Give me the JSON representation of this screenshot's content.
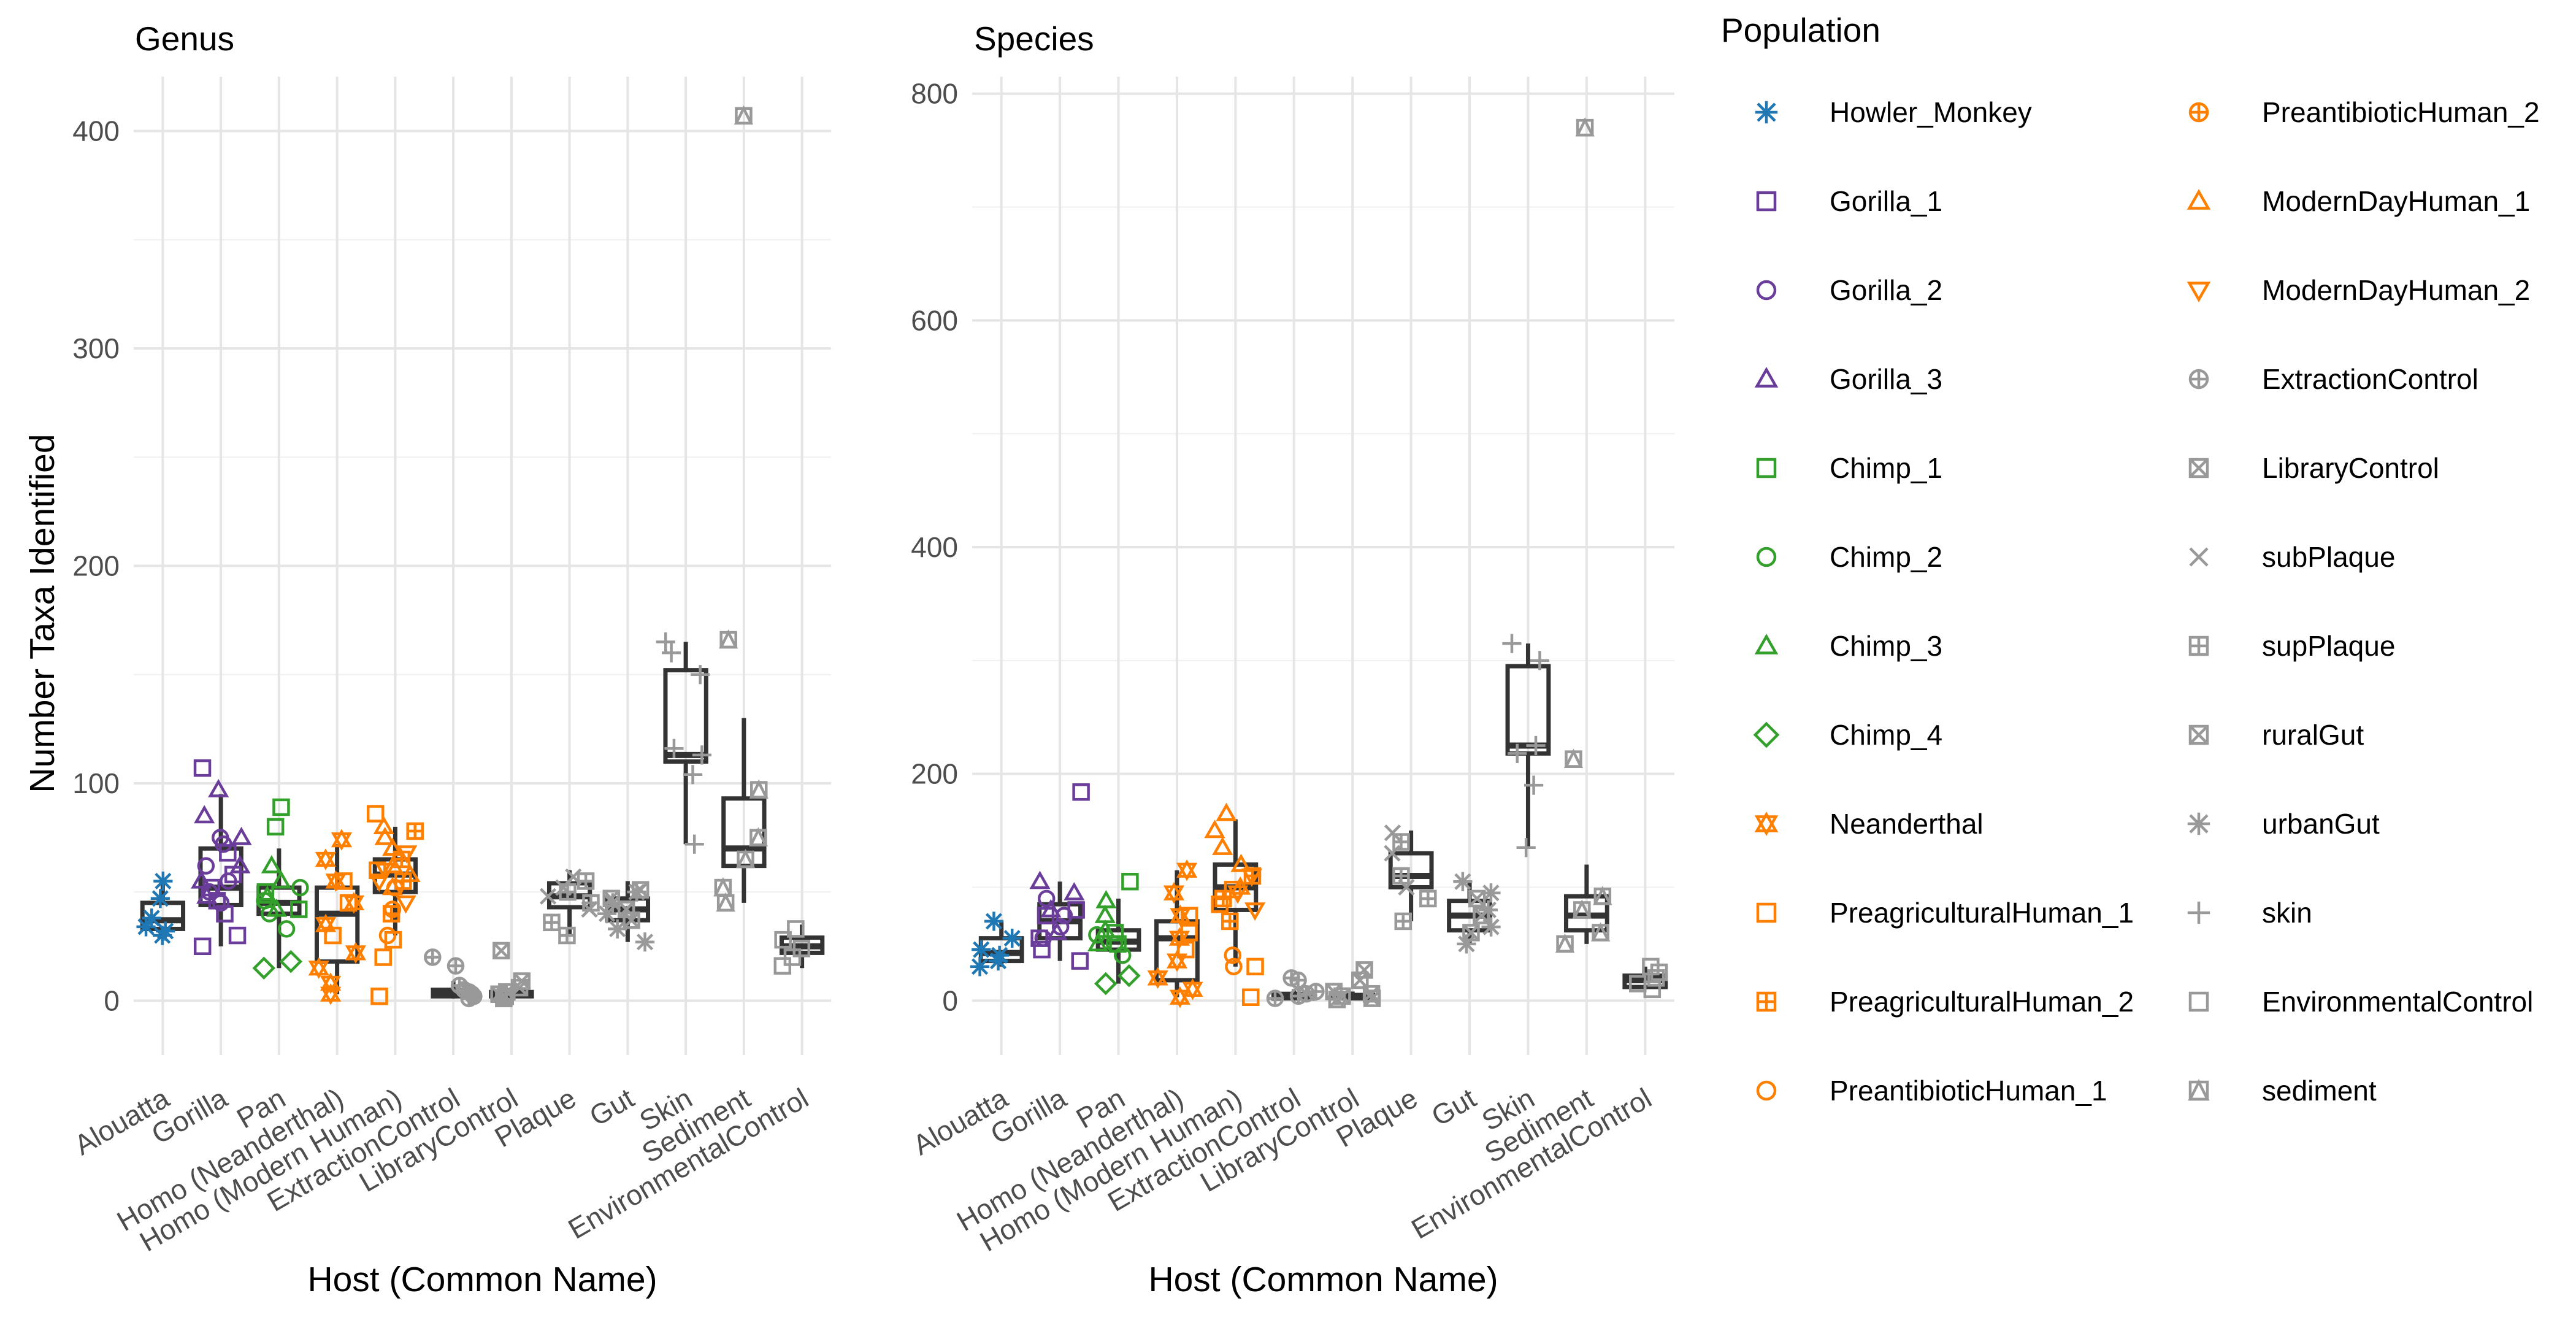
{
  "figure": {
    "y_axis_title": "Number Taxa Identified",
    "legend_title": "Population",
    "legend": [
      {
        "label": "Howler_Monkey",
        "color": "#1f78b4",
        "shape": "asterisk"
      },
      {
        "label": "Gorilla_1",
        "color": "#6a3d9a",
        "shape": "square"
      },
      {
        "label": "Gorilla_2",
        "color": "#6a3d9a",
        "shape": "circle"
      },
      {
        "label": "Gorilla_3",
        "color": "#6a3d9a",
        "shape": "triangle"
      },
      {
        "label": "Chimp_1",
        "color": "#33a02c",
        "shape": "square"
      },
      {
        "label": "Chimp_2",
        "color": "#33a02c",
        "shape": "circle"
      },
      {
        "label": "Chimp_3",
        "color": "#33a02c",
        "shape": "triangle"
      },
      {
        "label": "Chimp_4",
        "color": "#33a02c",
        "shape": "diamond"
      },
      {
        "label": "Neanderthal",
        "color": "#ff7f00",
        "shape": "star-of-david"
      },
      {
        "label": "PreagriculturalHuman_1",
        "color": "#ff7f00",
        "shape": "square"
      },
      {
        "label": "PreagriculturalHuman_2",
        "color": "#ff7f00",
        "shape": "square-plus"
      },
      {
        "label": "PreantibioticHuman_1",
        "color": "#ff7f00",
        "shape": "circle"
      },
      {
        "label": "PreantibioticHuman_2",
        "color": "#ff7f00",
        "shape": "circle-plus"
      },
      {
        "label": "ModernDayHuman_1",
        "color": "#ff7f00",
        "shape": "triangle"
      },
      {
        "label": "ModernDayHuman_2",
        "color": "#ff7f00",
        "shape": "triangle-down"
      },
      {
        "label": "ExtractionControl",
        "color": "#999999",
        "shape": "circle-plus"
      },
      {
        "label": "LibraryControl",
        "color": "#999999",
        "shape": "square-x"
      },
      {
        "label": "subPlaque",
        "color": "#999999",
        "shape": "x"
      },
      {
        "label": "supPlaque",
        "color": "#999999",
        "shape": "square-plus"
      },
      {
        "label": "ruralGut",
        "color": "#999999",
        "shape": "square-x"
      },
      {
        "label": "urbanGut",
        "color": "#999999",
        "shape": "asterisk"
      },
      {
        "label": "skin",
        "color": "#999999",
        "shape": "plus"
      },
      {
        "label": "EnvironmentalControl",
        "color": "#999999",
        "shape": "square"
      },
      {
        "label": "sediment",
        "color": "#999999",
        "shape": "square-triangle"
      }
    ]
  },
  "chart_data": [
    {
      "type": "box",
      "title": "Genus",
      "xlabel": "Host (Common Name)",
      "ylabel": "Number Taxa Identified",
      "ylim": [
        -25,
        425
      ],
      "yticks": [
        0,
        100,
        200,
        300,
        400
      ],
      "grid": true,
      "categories": [
        "Alouatta",
        "Gorilla",
        "Pan",
        "Homo (Neanderthal)",
        "Homo (Modern Human)",
        "ExtractionControl",
        "LibraryControl",
        "Plaque",
        "Gut",
        "Skin",
        "Sediment",
        "EnvironmentalControl"
      ],
      "boxes": [
        {
          "category": "Alouatta",
          "q1": 33,
          "median": 37,
          "q3": 45,
          "lower": 30,
          "upper": 55
        },
        {
          "category": "Gorilla",
          "q1": 44,
          "median": 52,
          "q3": 70,
          "lower": 25,
          "upper": 95
        },
        {
          "category": "Pan",
          "q1": 40,
          "median": 45,
          "q3": 52,
          "lower": 15,
          "upper": 70
        },
        {
          "category": "Homo (Neanderthal)",
          "q1": 18,
          "median": 40,
          "q3": 52,
          "lower": 3,
          "upper": 72
        },
        {
          "category": "Homo (Modern Human)",
          "q1": 50,
          "median": 58,
          "q3": 65,
          "lower": 30,
          "upper": 80
        },
        {
          "category": "ExtractionControl",
          "q1": 2,
          "median": 3,
          "q3": 5,
          "lower": 1,
          "upper": 9
        },
        {
          "category": "LibraryControl",
          "q1": 2,
          "median": 3,
          "q3": 4,
          "lower": 1,
          "upper": 6
        },
        {
          "category": "Plaque",
          "q1": 43,
          "median": 48,
          "q3": 54,
          "lower": 30,
          "upper": 60
        },
        {
          "category": "Gut",
          "q1": 37,
          "median": 42,
          "q3": 47,
          "lower": 27,
          "upper": 55
        },
        {
          "category": "Skin",
          "q1": 110,
          "median": 113,
          "q3": 152,
          "lower": 72,
          "upper": 165
        },
        {
          "category": "Sediment",
          "q1": 62,
          "median": 70,
          "q3": 93,
          "lower": 45,
          "upper": 130
        },
        {
          "category": "EnvironmentalControl",
          "q1": 22,
          "median": 25,
          "q3": 29,
          "lower": 15,
          "upper": 35
        }
      ],
      "points": [
        {
          "category": "Alouatta",
          "population": "Howler_Monkey",
          "values": [
            30,
            32,
            34,
            38,
            47,
            55
          ]
        },
        {
          "category": "Gorilla",
          "population": "Gorilla_1",
          "values": [
            25,
            30,
            40,
            46,
            52,
            58,
            68,
            107
          ]
        },
        {
          "category": "Gorilla",
          "population": "Gorilla_2",
          "values": [
            45,
            50,
            55,
            62,
            72,
            75
          ]
        },
        {
          "category": "Gorilla",
          "population": "Gorilla_3",
          "values": [
            48,
            55,
            62,
            75,
            85,
            97
          ]
        },
        {
          "category": "Pan",
          "population": "Chimp_1",
          "values": [
            42,
            50,
            80,
            89
          ]
        },
        {
          "category": "Pan",
          "population": "Chimp_2",
          "values": [
            33,
            40,
            46,
            52
          ]
        },
        {
          "category": "Pan",
          "population": "Chimp_3",
          "values": [
            42,
            48,
            55,
            62
          ]
        },
        {
          "category": "Pan",
          "population": "Chimp_4",
          "values": [
            15,
            18
          ]
        },
        {
          "category": "Homo (Neanderthal)",
          "population": "Neanderthal",
          "values": [
            3,
            8,
            15,
            22,
            35,
            45,
            55,
            65,
            74
          ]
        },
        {
          "category": "Homo (Neanderthal)",
          "population": "PreagriculturalHuman_1",
          "values": [
            30,
            45,
            55
          ]
        },
        {
          "category": "Homo (Modern Human)",
          "population": "PreagriculturalHuman_1",
          "values": [
            2,
            20,
            28,
            60,
            86
          ]
        },
        {
          "category": "Homo (Modern Human)",
          "population": "PreagriculturalHuman_2",
          "values": [
            40,
            55,
            65,
            78
          ]
        },
        {
          "category": "Homo (Modern Human)",
          "population": "PreantibioticHuman_1",
          "values": [
            30,
            42,
            52
          ]
        },
        {
          "category": "Homo (Modern Human)",
          "population": "ModernDayHuman_1",
          "values": [
            52,
            58,
            62,
            70,
            75,
            80
          ]
        },
        {
          "category": "Homo (Modern Human)",
          "population": "ModernDayHuman_2",
          "values": [
            45,
            55,
            60,
            68
          ]
        },
        {
          "category": "ExtractionControl",
          "population": "ExtractionControl",
          "values": [
            1,
            2,
            3,
            4,
            5,
            7,
            16,
            20
          ]
        },
        {
          "category": "LibraryControl",
          "population": "LibraryControl",
          "values": [
            1,
            2,
            3,
            4,
            6,
            9,
            23
          ]
        },
        {
          "category": "Plaque",
          "population": "subPlaque",
          "values": [
            42,
            48,
            52,
            57
          ]
        },
        {
          "category": "Plaque",
          "population": "supPlaque",
          "values": [
            30,
            36,
            45,
            50,
            55
          ]
        },
        {
          "category": "Gut",
          "population": "ruralGut",
          "values": [
            37,
            42,
            47,
            51
          ]
        },
        {
          "category": "Gut",
          "population": "urbanGut",
          "values": [
            27,
            33,
            40,
            45,
            50
          ]
        },
        {
          "category": "Skin",
          "population": "skin",
          "values": [
            72,
            104,
            113,
            116,
            150,
            160,
            165
          ]
        },
        {
          "category": "Sediment",
          "population": "sediment",
          "values": [
            45,
            52,
            65,
            75,
            97,
            166,
            407
          ]
        },
        {
          "category": "EnvironmentalControl",
          "population": "EnvironmentalControl",
          "values": [
            16,
            20,
            24,
            28,
            33
          ]
        }
      ]
    },
    {
      "type": "box",
      "title": "Species",
      "xlabel": "Host (Common Name)",
      "ylabel": "",
      "ylim": [
        -48,
        815
      ],
      "yticks": [
        0,
        200,
        400,
        600,
        800
      ],
      "grid": true,
      "categories": [
        "Alouatta",
        "Gorilla",
        "Pan",
        "Homo (Neanderthal)",
        "Homo (Modern Human)",
        "ExtractionControl",
        "LibraryControl",
        "Plaque",
        "Gut",
        "Skin",
        "Sediment",
        "EnvironmentalControl"
      ],
      "boxes": [
        {
          "category": "Alouatta",
          "q1": 35,
          "median": 42,
          "q3": 55,
          "lower": 30,
          "upper": 70
        },
        {
          "category": "Gorilla",
          "q1": 55,
          "median": 70,
          "q3": 85,
          "lower": 35,
          "upper": 105
        },
        {
          "category": "Pan",
          "q1": 45,
          "median": 52,
          "q3": 62,
          "lower": 15,
          "upper": 90
        },
        {
          "category": "Homo (Neanderthal)",
          "q1": 18,
          "median": 55,
          "q3": 70,
          "lower": 3,
          "upper": 115
        },
        {
          "category": "Homo (Modern Human)",
          "q1": 80,
          "median": 100,
          "q3": 120,
          "lower": 30,
          "upper": 160
        },
        {
          "category": "ExtractionControl",
          "q1": 2,
          "median": 4,
          "q3": 6,
          "lower": 1,
          "upper": 10
        },
        {
          "category": "LibraryControl",
          "q1": 2,
          "median": 3,
          "q3": 5,
          "lower": 1,
          "upper": 8
        },
        {
          "category": "Plaque",
          "q1": 100,
          "median": 110,
          "q3": 130,
          "lower": 70,
          "upper": 150
        },
        {
          "category": "Gut",
          "q1": 62,
          "median": 75,
          "q3": 88,
          "lower": 50,
          "upper": 105
        },
        {
          "category": "Skin",
          "q1": 218,
          "median": 225,
          "q3": 295,
          "lower": 135,
          "upper": 315
        },
        {
          "category": "Sediment",
          "q1": 62,
          "median": 75,
          "q3": 92,
          "lower": 50,
          "upper": 120
        },
        {
          "category": "EnvironmentalControl",
          "q1": 12,
          "median": 18,
          "q3": 22,
          "lower": 10,
          "upper": 30
        }
      ],
      "points": [
        {
          "category": "Alouatta",
          "population": "Howler_Monkey",
          "values": [
            30,
            35,
            40,
            45,
            55,
            70
          ]
        },
        {
          "category": "Gorilla",
          "population": "Gorilla_1",
          "values": [
            35,
            45,
            55,
            75,
            80,
            184
          ]
        },
        {
          "category": "Gorilla",
          "population": "Gorilla_2",
          "values": [
            55,
            65,
            75,
            90
          ]
        },
        {
          "category": "Gorilla",
          "population": "Gorilla_3",
          "values": [
            60,
            80,
            95,
            105
          ]
        },
        {
          "category": "Pan",
          "population": "Chimp_1",
          "values": [
            50,
            60,
            105
          ]
        },
        {
          "category": "Pan",
          "population": "Chimp_2",
          "values": [
            40,
            50,
            58
          ]
        },
        {
          "category": "Pan",
          "population": "Chimp_3",
          "values": [
            50,
            62,
            75,
            88
          ]
        },
        {
          "category": "Pan",
          "population": "Chimp_4",
          "values": [
            15,
            22
          ]
        },
        {
          "category": "Homo (Neanderthal)",
          "population": "Neanderthal",
          "values": [
            3,
            10,
            20,
            35,
            55,
            75,
            95,
            115
          ]
        },
        {
          "category": "Homo (Neanderthal)",
          "population": "PreagriculturalHuman_1",
          "values": [
            45,
            60,
            75
          ]
        },
        {
          "category": "Homo (Modern Human)",
          "population": "PreagriculturalHuman_1",
          "values": [
            3,
            30,
            85,
            98
          ]
        },
        {
          "category": "Homo (Modern Human)",
          "population": "PreagriculturalHuman_2",
          "values": [
            70,
            90,
            110
          ]
        },
        {
          "category": "Homo (Modern Human)",
          "population": "PreantibioticHuman_1",
          "values": [
            30,
            40
          ]
        },
        {
          "category": "Homo (Modern Human)",
          "population": "ModernDayHuman_1",
          "values": [
            100,
            120,
            135,
            150,
            165
          ]
        },
        {
          "category": "Homo (Modern Human)",
          "population": "ModernDayHuman_2",
          "values": [
            80,
            95,
            110
          ]
        },
        {
          "category": "ExtractionControl",
          "population": "ExtractionControl",
          "values": [
            2,
            4,
            6,
            8,
            18,
            20
          ]
        },
        {
          "category": "LibraryControl",
          "population": "LibraryControl",
          "values": [
            1,
            2,
            4,
            6,
            8,
            18,
            27
          ]
        },
        {
          "category": "Plaque",
          "population": "subPlaque",
          "values": [
            100,
            130,
            148
          ]
        },
        {
          "category": "Plaque",
          "population": "supPlaque",
          "values": [
            70,
            90,
            110,
            140
          ]
        },
        {
          "category": "Gut",
          "population": "ruralGut",
          "values": [
            60,
            75,
            90
          ]
        },
        {
          "category": "Gut",
          "population": "urbanGut",
          "values": [
            50,
            65,
            80,
            95,
            105
          ]
        },
        {
          "category": "Skin",
          "population": "skin",
          "values": [
            135,
            190,
            218,
            225,
            300,
            315
          ]
        },
        {
          "category": "Sediment",
          "population": "sediment",
          "values": [
            50,
            60,
            80,
            92,
            213,
            770
          ]
        },
        {
          "category": "EnvironmentalControl",
          "population": "EnvironmentalControl",
          "values": [
            10,
            15,
            20,
            25,
            30
          ]
        }
      ]
    }
  ]
}
